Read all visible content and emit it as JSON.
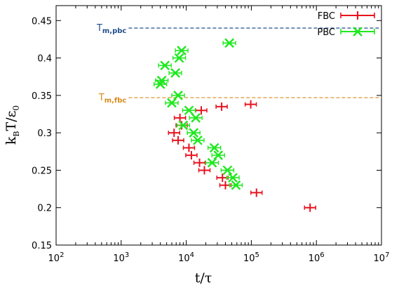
{
  "chart_data": {
    "type": "scatter",
    "title": "",
    "xlabel": "t/τ",
    "ylabel": "k_B T/ε_0",
    "x_scale": "log",
    "xlim": [
      100,
      10000000
    ],
    "ylim": [
      0.15,
      0.47
    ],
    "x_tick_labels": [
      {
        "value": 100,
        "base": "10",
        "exp": "2"
      },
      {
        "value": 1000,
        "base": "10",
        "exp": "3"
      },
      {
        "value": 10000,
        "base": "10",
        "exp": "4"
      },
      {
        "value": 100000,
        "base": "10",
        "exp": "5"
      },
      {
        "value": 1000000,
        "base": "10",
        "exp": "6"
      },
      {
        "value": 10000000,
        "base": "10",
        "exp": "7"
      }
    ],
    "y_ticks": [
      0.15,
      0.2,
      0.25,
      0.3,
      0.35,
      0.4,
      0.45
    ],
    "y_tick_labels": [
      "0.15",
      "0.2",
      "0.25",
      "0.3",
      "0.35",
      "0.4",
      "0.45"
    ],
    "grid": false,
    "legend_position": "top-right",
    "series": [
      {
        "name": "FBC",
        "color": "#e8121e",
        "marker": "plus",
        "points": [
          {
            "x": 6500,
            "y": 0.3
          },
          {
            "x": 8000,
            "y": 0.32
          },
          {
            "x": 7500,
            "y": 0.29
          },
          {
            "x": 8500,
            "y": 0.31
          },
          {
            "x": 11000,
            "y": 0.28
          },
          {
            "x": 12000,
            "y": 0.27
          },
          {
            "x": 16000,
            "y": 0.26
          },
          {
            "x": 19000,
            "y": 0.25
          },
          {
            "x": 17000,
            "y": 0.33
          },
          {
            "x": 35000,
            "y": 0.335
          },
          {
            "x": 36000,
            "y": 0.24
          },
          {
            "x": 40000,
            "y": 0.23
          },
          {
            "x": 98000,
            "y": 0.338
          },
          {
            "x": 120000,
            "y": 0.22
          },
          {
            "x": 800000,
            "y": 0.2
          }
        ]
      },
      {
        "name": "PBC",
        "color": "#1ee81e",
        "marker": "x",
        "points": [
          {
            "x": 4000,
            "y": 0.365
          },
          {
            "x": 4200,
            "y": 0.37
          },
          {
            "x": 4700,
            "y": 0.39
          },
          {
            "x": 6000,
            "y": 0.34
          },
          {
            "x": 6800,
            "y": 0.38
          },
          {
            "x": 7500,
            "y": 0.35
          },
          {
            "x": 7800,
            "y": 0.4
          },
          {
            "x": 8500,
            "y": 0.41
          },
          {
            "x": 9000,
            "y": 0.31
          },
          {
            "x": 11000,
            "y": 0.33
          },
          {
            "x": 13000,
            "y": 0.3
          },
          {
            "x": 14000,
            "y": 0.32
          },
          {
            "x": 15000,
            "y": 0.29
          },
          {
            "x": 25000,
            "y": 0.26
          },
          {
            "x": 27000,
            "y": 0.28
          },
          {
            "x": 31000,
            "y": 0.27
          },
          {
            "x": 43000,
            "y": 0.25
          },
          {
            "x": 46000,
            "y": 0.42
          },
          {
            "x": 52000,
            "y": 0.24
          },
          {
            "x": 58000,
            "y": 0.23
          }
        ]
      }
    ],
    "reference_lines": [
      {
        "name": "T_m,pbc",
        "main": "T",
        "sub": "m,pbc",
        "y": 0.44,
        "x_start": 1300,
        "color": "#1f4e8c"
      },
      {
        "name": "T_m,fbc",
        "main": "T",
        "sub": "m,fbc",
        "y": 0.347,
        "x_start": 1300,
        "color": "#d98a1c"
      }
    ]
  }
}
